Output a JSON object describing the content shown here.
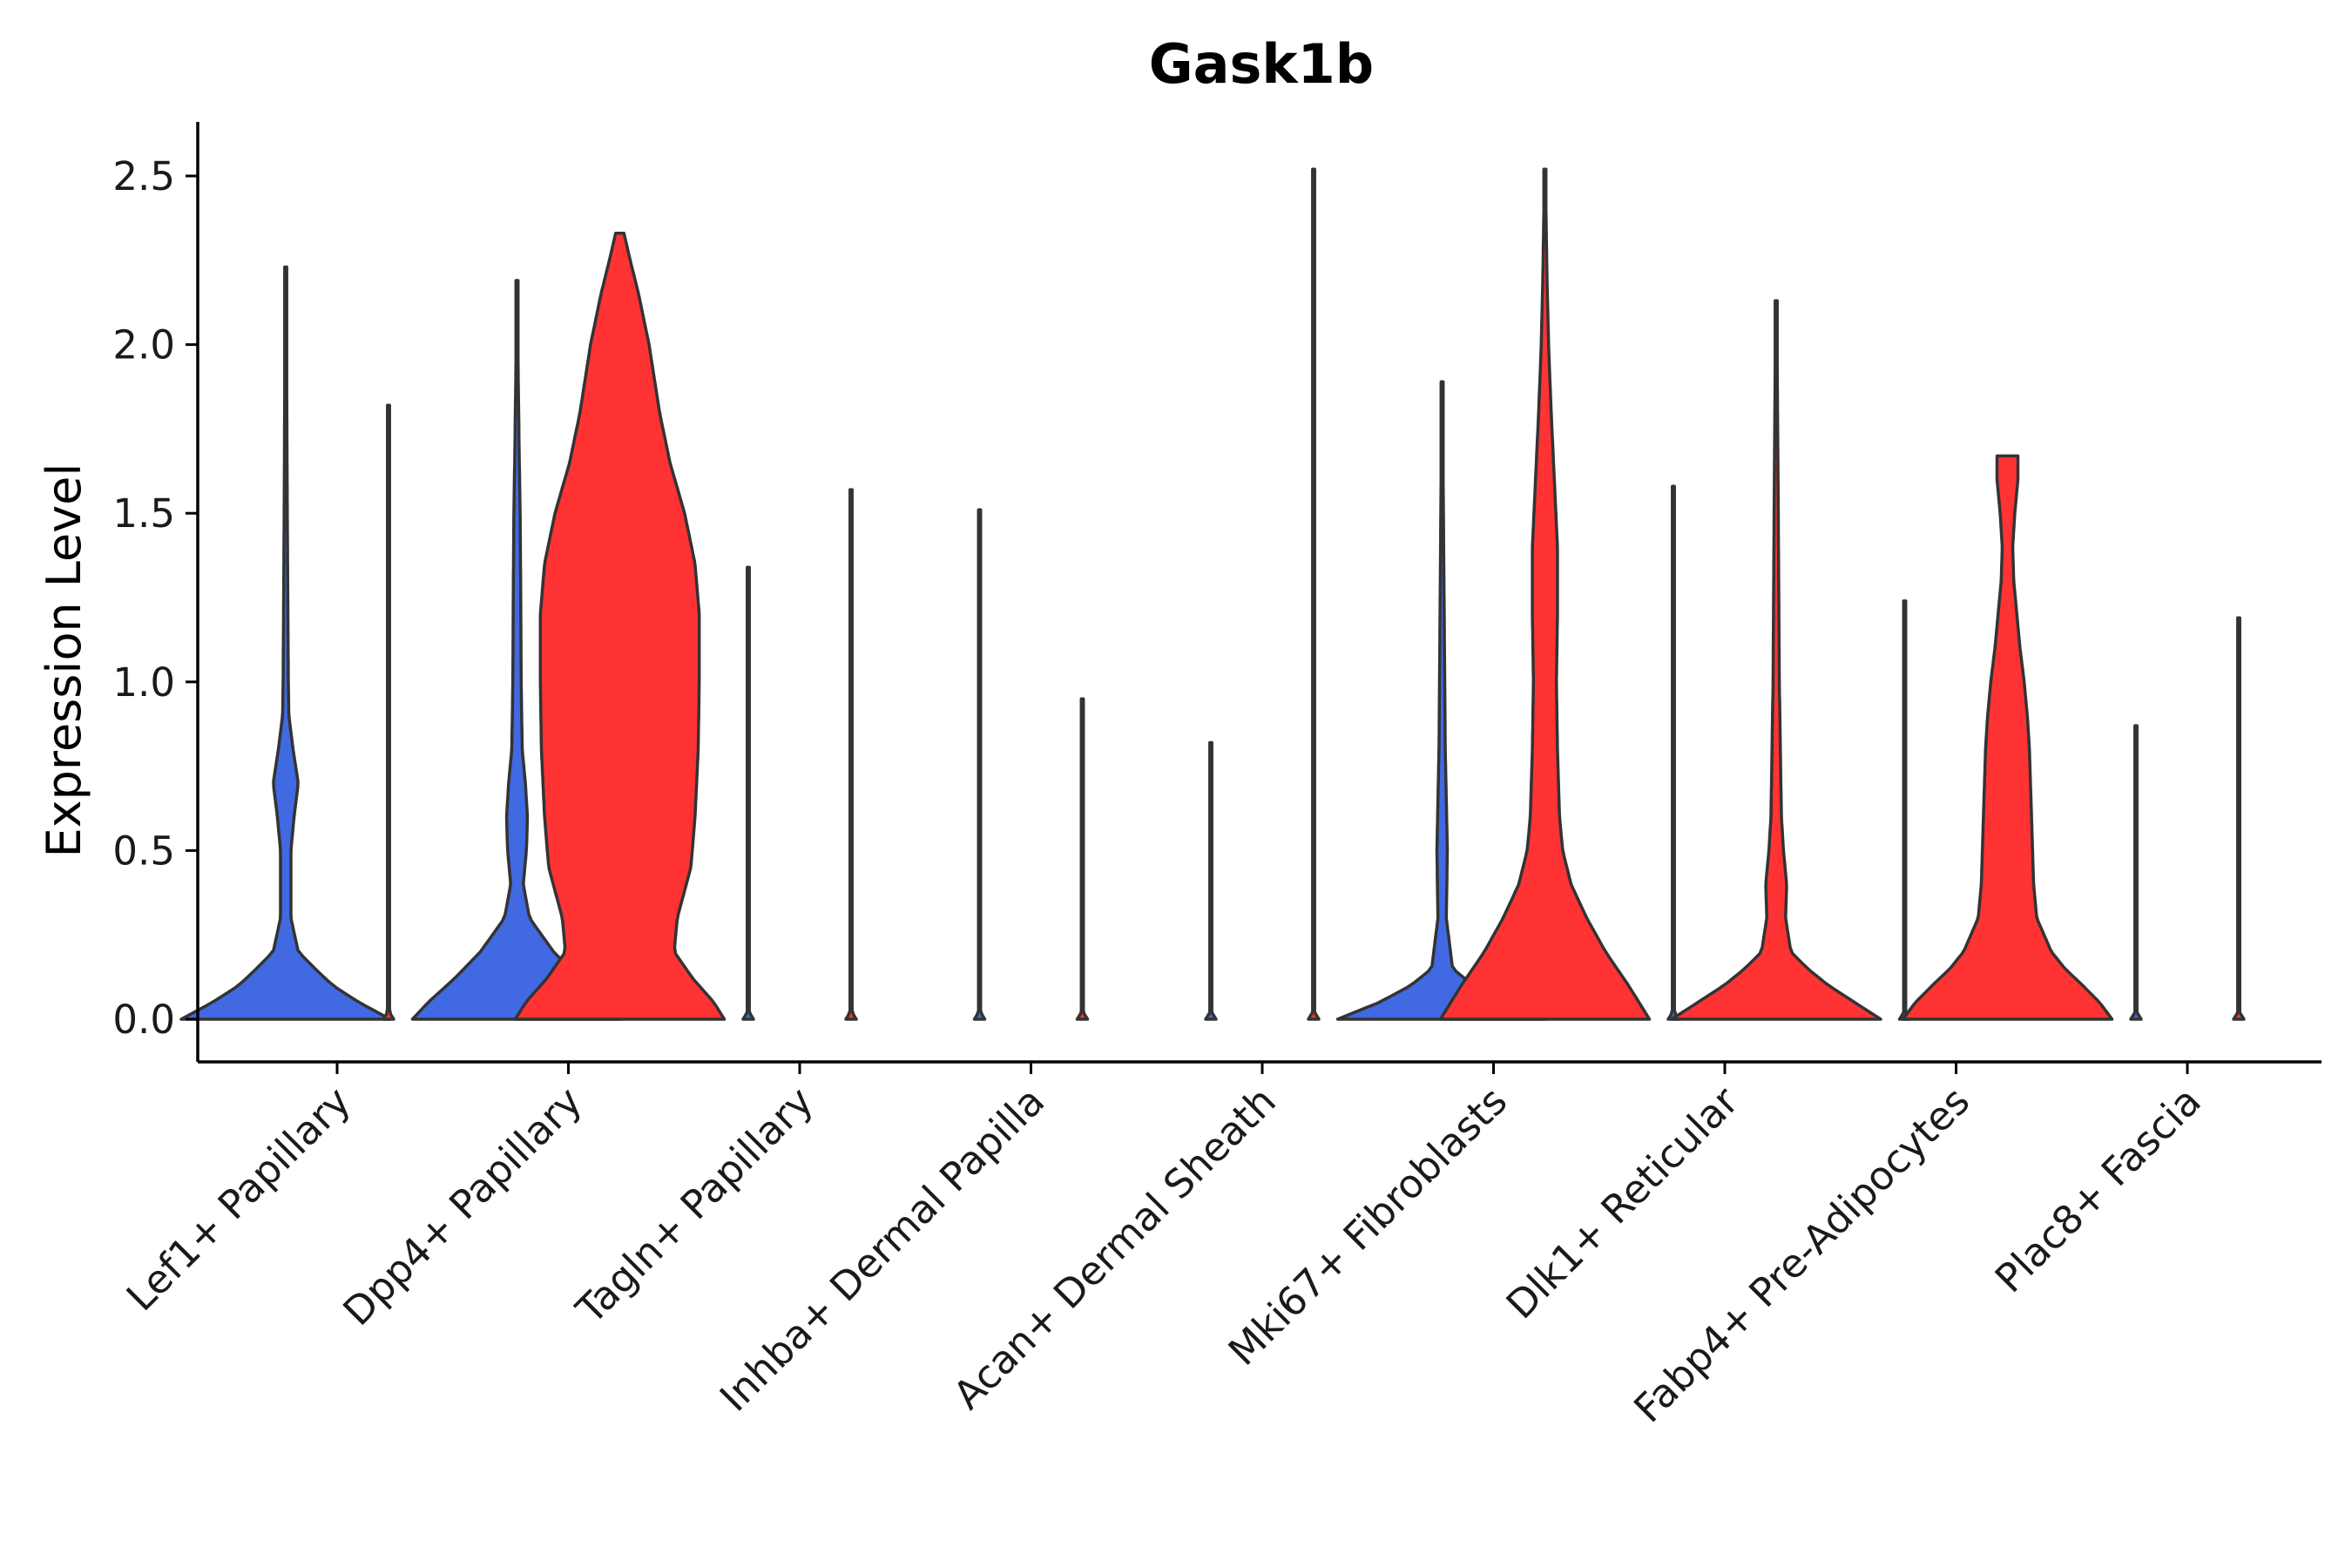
{
  "chart_data": {
    "type": "violin",
    "title": "Gask1b",
    "xlabel": "",
    "ylabel": "Expression Level",
    "ylim": [
      -0.13,
      2.65
    ],
    "yticks": [
      0.0,
      0.5,
      1.0,
      1.5,
      2.0,
      2.5
    ],
    "ytick_labels": [
      "0.0",
      "0.5",
      "1.0",
      "1.5",
      "2.0",
      "2.5"
    ],
    "categories": [
      "Lef1+ Papillary",
      "Dpp4+ Papillary",
      "Tagln+ Papillary",
      "Inhba+ Dermal Papilla",
      "Acan+ Dermal Sheath",
      "Mki67+ Fibroblasts",
      "Dlk1+ Reticular",
      "Fabp4+ Pre-Adipocytes",
      "Plac8+ Fascia"
    ],
    "groups": [
      {
        "name": "blue",
        "color": "#4169E1"
      },
      {
        "name": "red",
        "color": "#FF3333"
      }
    ],
    "violins": [
      {
        "category": 0,
        "group": 0,
        "max": 2.23,
        "profile": [
          [
            0,
            1.0
          ],
          [
            0.05,
            0.7
          ],
          [
            0.1,
            0.45
          ],
          [
            0.15,
            0.28
          ],
          [
            0.2,
            0.12
          ],
          [
            0.3,
            0.05
          ],
          [
            0.5,
            0.05
          ],
          [
            0.6,
            0.08
          ],
          [
            0.7,
            0.12
          ],
          [
            0.8,
            0.07
          ],
          [
            0.9,
            0.03
          ],
          [
            1.0,
            0.025
          ],
          [
            1.5,
            0.015
          ],
          [
            2.0,
            0.008
          ],
          [
            2.23,
            0.004
          ]
        ]
      },
      {
        "category": 0,
        "group": 1,
        "max": 1.82,
        "profile": [
          [
            0,
            0.05
          ],
          [
            0.02,
            0.01
          ],
          [
            0.2,
            0.006
          ],
          [
            1.82,
            0.004
          ]
        ]
      },
      {
        "category": 1,
        "group": 0,
        "max": 2.19,
        "profile": [
          [
            0,
            1.0
          ],
          [
            0.05,
            0.85
          ],
          [
            0.12,
            0.6
          ],
          [
            0.2,
            0.35
          ],
          [
            0.3,
            0.12
          ],
          [
            0.4,
            0.06
          ],
          [
            0.5,
            0.09
          ],
          [
            0.6,
            0.1
          ],
          [
            0.7,
            0.08
          ],
          [
            0.8,
            0.05
          ],
          [
            1.0,
            0.04
          ],
          [
            1.3,
            0.035
          ],
          [
            1.5,
            0.03
          ],
          [
            1.7,
            0.02
          ],
          [
            2.0,
            0.008
          ],
          [
            2.19,
            0.004
          ]
        ]
      },
      {
        "category": 1,
        "group": 1,
        "max": 2.33,
        "profile": [
          [
            0,
            1.0
          ],
          [
            0.05,
            0.9
          ],
          [
            0.12,
            0.7
          ],
          [
            0.2,
            0.52
          ],
          [
            0.3,
            0.55
          ],
          [
            0.45,
            0.68
          ],
          [
            0.6,
            0.72
          ],
          [
            0.8,
            0.75
          ],
          [
            1.0,
            0.76
          ],
          [
            1.2,
            0.76
          ],
          [
            1.35,
            0.72
          ],
          [
            1.5,
            0.62
          ],
          [
            1.65,
            0.48
          ],
          [
            1.8,
            0.38
          ],
          [
            2.0,
            0.28
          ],
          [
            2.15,
            0.18
          ],
          [
            2.25,
            0.1
          ],
          [
            2.33,
            0.04
          ]
        ]
      },
      {
        "category": 2,
        "group": 0,
        "max": 1.34,
        "profile": [
          [
            0,
            0.05
          ],
          [
            0.02,
            0.01
          ],
          [
            0.2,
            0.006
          ],
          [
            1.34,
            0.004
          ]
        ]
      },
      {
        "category": 2,
        "group": 1,
        "max": 1.57,
        "profile": [
          [
            0,
            0.05
          ],
          [
            0.02,
            0.01
          ],
          [
            0.2,
            0.006
          ],
          [
            1.57,
            0.004
          ]
        ]
      },
      {
        "category": 3,
        "group": 0,
        "max": 1.51,
        "profile": [
          [
            0,
            0.05
          ],
          [
            0.02,
            0.01
          ],
          [
            0.2,
            0.006
          ],
          [
            1.51,
            0.004
          ]
        ]
      },
      {
        "category": 3,
        "group": 1,
        "max": 0.95,
        "profile": [
          [
            0,
            0.05
          ],
          [
            0.02,
            0.01
          ],
          [
            0.2,
            0.006
          ],
          [
            0.95,
            0.004
          ]
        ]
      },
      {
        "category": 4,
        "group": 0,
        "max": 0.82,
        "profile": [
          [
            0,
            0.05
          ],
          [
            0.02,
            0.01
          ],
          [
            0.2,
            0.006
          ],
          [
            0.82,
            0.004
          ]
        ]
      },
      {
        "category": 4,
        "group": 1,
        "max": 2.52,
        "profile": [
          [
            0,
            0.05
          ],
          [
            0.02,
            0.01
          ],
          [
            0.2,
            0.006
          ],
          [
            2.52,
            0.004
          ]
        ]
      },
      {
        "category": 5,
        "group": 0,
        "max": 1.89,
        "profile": [
          [
            0,
            1.0
          ],
          [
            0.05,
            0.6
          ],
          [
            0.1,
            0.3
          ],
          [
            0.15,
            0.1
          ],
          [
            0.3,
            0.04
          ],
          [
            0.5,
            0.05
          ],
          [
            0.8,
            0.03
          ],
          [
            1.2,
            0.02
          ],
          [
            1.6,
            0.01
          ],
          [
            1.89,
            0.005
          ]
        ]
      },
      {
        "category": 5,
        "group": 1,
        "max": 2.52,
        "profile": [
          [
            0,
            1.0
          ],
          [
            0.05,
            0.9
          ],
          [
            0.1,
            0.8
          ],
          [
            0.2,
            0.58
          ],
          [
            0.3,
            0.4
          ],
          [
            0.4,
            0.25
          ],
          [
            0.5,
            0.17
          ],
          [
            0.6,
            0.14
          ],
          [
            0.8,
            0.12
          ],
          [
            1.0,
            0.11
          ],
          [
            1.2,
            0.12
          ],
          [
            1.4,
            0.12
          ],
          [
            1.6,
            0.09
          ],
          [
            1.8,
            0.06
          ],
          [
            2.0,
            0.035
          ],
          [
            2.2,
            0.02
          ],
          [
            2.4,
            0.01
          ],
          [
            2.52,
            0.004
          ]
        ]
      },
      {
        "category": 6,
        "group": 0,
        "max": 1.58,
        "profile": [
          [
            0,
            0.05
          ],
          [
            0.02,
            0.01
          ],
          [
            0.2,
            0.006
          ],
          [
            1.58,
            0.004
          ]
        ]
      },
      {
        "category": 6,
        "group": 1,
        "max": 2.13,
        "profile": [
          [
            0,
            1.0
          ],
          [
            0.05,
            0.75
          ],
          [
            0.1,
            0.5
          ],
          [
            0.15,
            0.3
          ],
          [
            0.2,
            0.14
          ],
          [
            0.3,
            0.09
          ],
          [
            0.4,
            0.1
          ],
          [
            0.5,
            0.07
          ],
          [
            0.6,
            0.05
          ],
          [
            0.8,
            0.04
          ],
          [
            1.0,
            0.03
          ],
          [
            1.5,
            0.02
          ],
          [
            2.0,
            0.008
          ],
          [
            2.13,
            0.004
          ]
        ]
      },
      {
        "category": 7,
        "group": 0,
        "max": 1.24,
        "profile": [
          [
            0,
            0.05
          ],
          [
            0.02,
            0.01
          ],
          [
            0.2,
            0.006
          ],
          [
            1.24,
            0.004
          ]
        ]
      },
      {
        "category": 7,
        "group": 1,
        "max": 1.67,
        "profile": [
          [
            0,
            1.0
          ],
          [
            0.05,
            0.88
          ],
          [
            0.1,
            0.72
          ],
          [
            0.15,
            0.55
          ],
          [
            0.2,
            0.42
          ],
          [
            0.3,
            0.28
          ],
          [
            0.4,
            0.25
          ],
          [
            0.5,
            0.24
          ],
          [
            0.6,
            0.23
          ],
          [
            0.7,
            0.22
          ],
          [
            0.8,
            0.21
          ],
          [
            0.9,
            0.19
          ],
          [
            1.0,
            0.16
          ],
          [
            1.1,
            0.12
          ],
          [
            1.2,
            0.09
          ],
          [
            1.3,
            0.06
          ],
          [
            1.4,
            0.05
          ],
          [
            1.5,
            0.07
          ],
          [
            1.6,
            0.1
          ],
          [
            1.67,
            0.1
          ]
        ]
      },
      {
        "category": 8,
        "group": 0,
        "max": 0.87,
        "profile": [
          [
            0,
            0.05
          ],
          [
            0.02,
            0.01
          ],
          [
            0.2,
            0.006
          ],
          [
            0.87,
            0.004
          ]
        ]
      },
      {
        "category": 8,
        "group": 1,
        "max": 1.19,
        "profile": [
          [
            0,
            0.05
          ],
          [
            0.02,
            0.01
          ],
          [
            0.2,
            0.006
          ],
          [
            1.19,
            0.004
          ]
        ]
      }
    ]
  }
}
